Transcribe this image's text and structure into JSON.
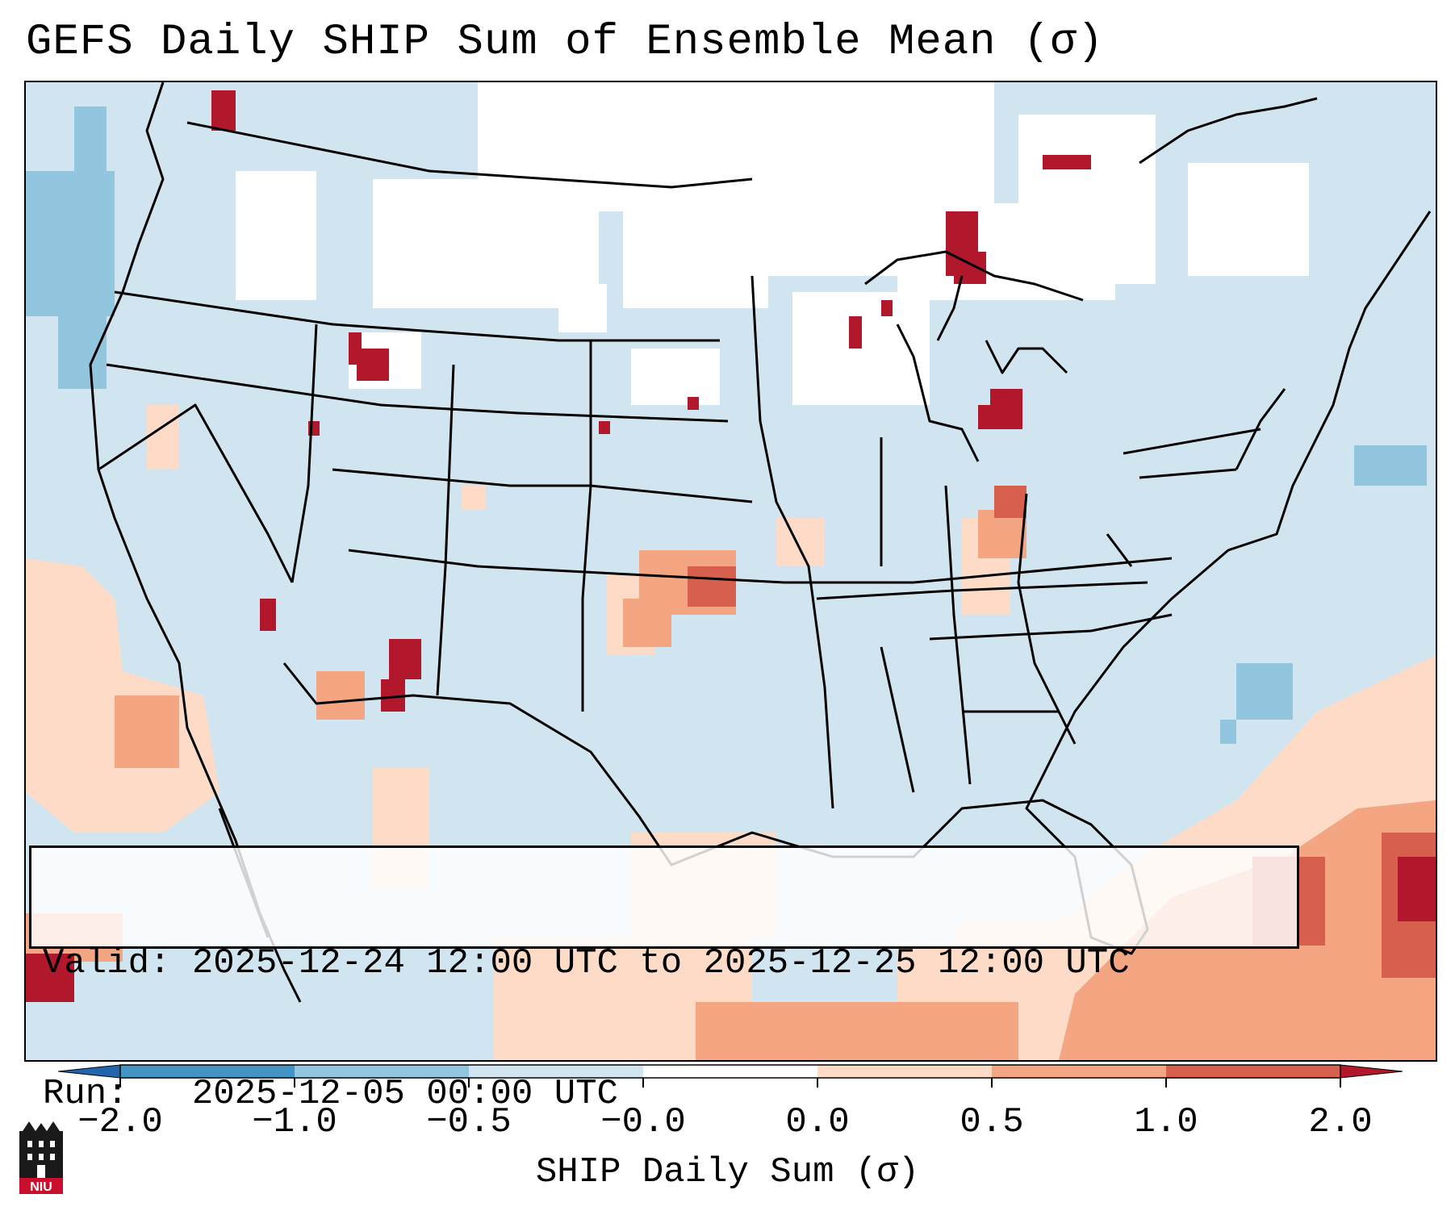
{
  "title": "GEFS Daily SHIP Sum of Ensemble Mean (σ)",
  "info": {
    "valid_line": "Valid: 2025-12-24 12:00 UTC to 2025-12-25 12:00 UTC",
    "run_line": "Run:   2025-12-05 00:00 UTC"
  },
  "colorbar": {
    "label": "SHIP Daily Sum (σ)",
    "ticks": [
      "−2.0",
      "−1.0",
      "−0.5",
      "−0.0",
      "0.0",
      "0.5",
      "1.0",
      "2.0"
    ],
    "colors": [
      "#4393c3",
      "#92c5de",
      "#d1e5f0",
      "#ffffff",
      "#fddbc7",
      "#f4a582",
      "#d6604d",
      "#b2182b"
    ],
    "extend": "both"
  },
  "map": {
    "region": "Continental United States",
    "background_color": "#d1e5f0",
    "coastline_color": "#000000"
  },
  "logo": {
    "text": "NIU"
  }
}
